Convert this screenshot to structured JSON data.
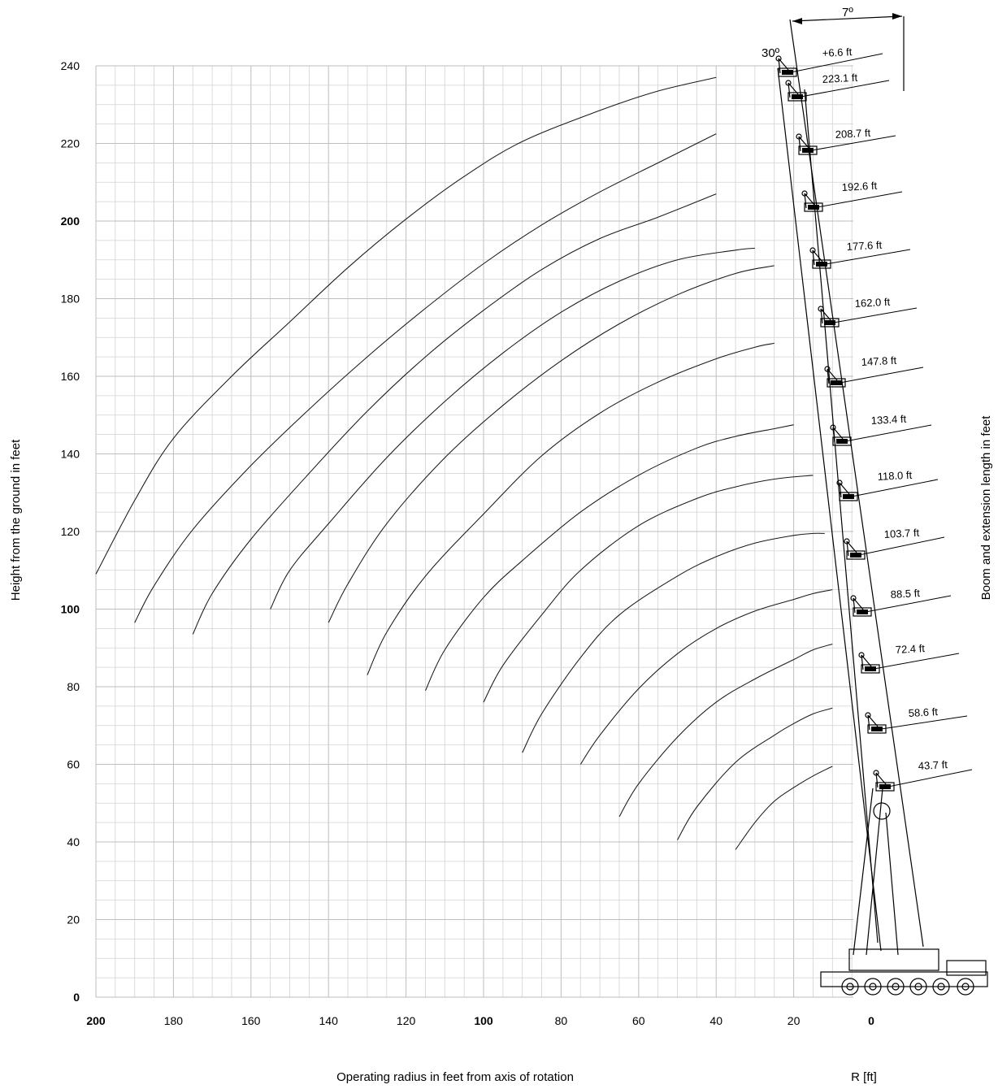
{
  "chart_data": {
    "type": "line",
    "xlabel": "Operating radius in feet from axis of rotation",
    "ylabel": "Height from the ground in feet",
    "y2label": "Boom and extension length in feet",
    "r_label": "R [ft]",
    "xlim": [
      200,
      -28
    ],
    "ylim": [
      0,
      240
    ],
    "x_ticks": [
      "200",
      "180",
      "160",
      "140",
      "120",
      "100",
      "80",
      "60",
      "40",
      "20",
      "0"
    ],
    "x_ticks_bold": [
      "200",
      "100",
      "0"
    ],
    "y_ticks": [
      "0",
      "20",
      "40",
      "60",
      "80",
      "100",
      "120",
      "140",
      "160",
      "180",
      "200",
      "220",
      "240"
    ],
    "y_ticks_bold": [
      "0",
      "100",
      "200"
    ],
    "grid": true,
    "angle_labels": [
      "30º",
      "7º"
    ],
    "boom_labels": [
      "+6.6 ft",
      "223.1 ft",
      "208.7 ft",
      "192.6 ft",
      "177.6 ft",
      "162.0 ft",
      "147.8 ft",
      "133.4 ft",
      "118.0 ft",
      "103.7 ft",
      "88.5 ft",
      "72.4 ft",
      "58.6 ft",
      "43.7 ft"
    ],
    "series": [
      {
        "name": "+6.6 ft",
        "x": [
          200,
          190,
          180,
          165,
          150,
          135,
          120,
          105,
          90,
          70,
          55,
          40
        ],
        "y": [
          109,
          128,
          144,
          160,
          174,
          188,
          200.5,
          211.5,
          220.5,
          228.5,
          233.5,
          237
        ]
      },
      {
        "name": "223.1 ft",
        "x": [
          190,
          185,
          175,
          160,
          145,
          130,
          115,
          100,
          85,
          70,
          55,
          40
        ],
        "y": [
          96.5,
          106,
          120.5,
          137,
          151.5,
          165,
          177.5,
          189,
          199,
          207.5,
          215,
          222.5
        ]
      },
      {
        "name": "208.7 ft",
        "x": [
          175,
          170,
          160,
          145,
          130,
          115,
          100,
          85,
          70,
          55,
          40
        ],
        "y": [
          93.5,
          104,
          118,
          135,
          151,
          165,
          177,
          187.5,
          195.5,
          201,
          207
        ]
      },
      {
        "name": "192.6 ft",
        "x": [
          155,
          150,
          140,
          125,
          110,
          95,
          80,
          65,
          50,
          35,
          30
        ],
        "y": [
          100,
          110,
          122,
          139,
          153.5,
          166,
          176.5,
          184.5,
          190,
          192.5,
          193
        ]
      },
      {
        "name": "177.6 ft",
        "x": [
          140,
          135,
          125,
          110,
          95,
          80,
          65,
          50,
          35,
          25
        ],
        "y": [
          96.5,
          106.5,
          122,
          139,
          152.5,
          164,
          173.5,
          181,
          186.5,
          188.5
        ]
      },
      {
        "name": "162.0 ft",
        "x": [
          130,
          125,
          115,
          100,
          85,
          70,
          55,
          40,
          30,
          25
        ],
        "y": [
          83,
          94,
          108.5,
          124.5,
          139.5,
          150.5,
          158.5,
          164.5,
          167.5,
          168.5
        ]
      },
      {
        "name": "147.8 ft",
        "x": [
          115,
          110,
          100,
          90,
          75,
          60,
          45,
          35,
          25,
          20
        ],
        "y": [
          79,
          89.5,
          103,
          112.5,
          125,
          134.5,
          141.5,
          144.5,
          146.5,
          147.5
        ]
      },
      {
        "name": "133.4 ft",
        "x": [
          100,
          95,
          85,
          75,
          60,
          45,
          35,
          25,
          15
        ],
        "y": [
          76,
          85.5,
          98.5,
          110,
          121.5,
          128.5,
          131.5,
          133.5,
          134.5
        ]
      },
      {
        "name": "118.0 ft",
        "x": [
          90,
          85,
          75,
          65,
          50,
          40,
          30,
          20,
          15,
          12
        ],
        "y": [
          63,
          73,
          87.5,
          98.5,
          108.5,
          113.5,
          117,
          119,
          119.5,
          119.5
        ]
      },
      {
        "name": "103.7 ft",
        "x": [
          75,
          70,
          60,
          50,
          40,
          30,
          20,
          15,
          10
        ],
        "y": [
          60,
          67.5,
          79.5,
          88.5,
          95,
          99.5,
          102.5,
          104,
          105
        ]
      },
      {
        "name": "88.5 ft",
        "x": [
          65,
          60,
          50,
          40,
          30,
          20,
          15,
          10
        ],
        "y": [
          46.5,
          55,
          67,
          76,
          82,
          87,
          89.5,
          91
        ]
      },
      {
        "name": "72.4 ft",
        "x": [
          50,
          45,
          35,
          25,
          20,
          15,
          10
        ],
        "y": [
          40.5,
          49,
          60.5,
          67.5,
          70.5,
          73,
          74.5
        ]
      },
      {
        "name": "58.6 ft",
        "x": [
          35,
          30,
          25,
          20,
          15,
          10
        ],
        "y": [
          38,
          45,
          50.5,
          54,
          57,
          59.5
        ]
      }
    ]
  }
}
